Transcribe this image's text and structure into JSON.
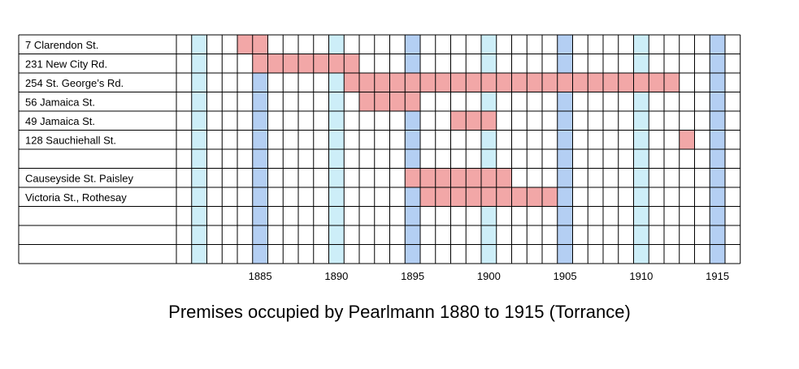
{
  "chart_data": {
    "type": "table",
    "title": "Premises occupied by Pearlmann 1880 to 1915 (Torrance)",
    "year_start": 1880,
    "year_end": 1916,
    "tick_labels": [
      "1885",
      "1890",
      "1895",
      "1900",
      "1905",
      "1910",
      "1915"
    ],
    "tick_years": [
      1885,
      1890,
      1895,
      1900,
      1905,
      1910,
      1915
    ],
    "rows": [
      {
        "label": "7 Clarendon St.",
        "from": 1884,
        "to": 1885
      },
      {
        "label": "231 New City Rd.",
        "from": 1885,
        "to": 1891
      },
      {
        "label": "254 St. George’s Rd.",
        "from": 1891,
        "to": 1912
      },
      {
        "label": "56 Jamaica St.",
        "from": 1892,
        "to": 1895
      },
      {
        "label": "49 Jamaica St.",
        "from": 1898,
        "to": 1900
      },
      {
        "label": "128 Sauchiehall St.",
        "from": 1913,
        "to": 1913
      },
      {
        "label": "",
        "from": null,
        "to": null
      },
      {
        "label": "Causeyside St. Paisley",
        "from": 1895,
        "to": 1901
      },
      {
        "label": "Victoria St., Rothesay",
        "from": 1896,
        "to": 1904
      },
      {
        "label": "",
        "from": null,
        "to": null
      },
      {
        "label": "",
        "from": null,
        "to": null
      },
      {
        "label": "",
        "from": null,
        "to": null
      }
    ],
    "colors": {
      "occupied": "#f2a7a7",
      "five_year_column": "#b4cff3",
      "mid_decade_column": "#cdeef8",
      "grid": "#000000"
    },
    "grid": true
  }
}
